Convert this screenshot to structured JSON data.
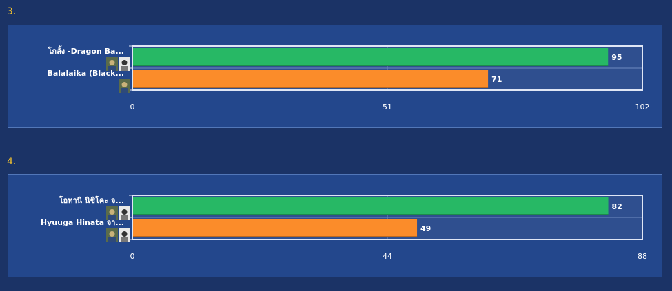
{
  "colors": {
    "series_a": "#27b865",
    "series_b": "#fb8c2a",
    "plot_bg": "#2f4f8f",
    "frame": "#dfe6f5"
  },
  "charts": [
    {
      "number": "3.",
      "chart_data": {
        "type": "bar",
        "orientation": "horizontal",
        "categories": [
          "โกลั้ง -Dragon Ba...",
          "Balalaika (Black..."
        ],
        "values": [
          95,
          71
        ],
        "bar_colors": [
          "#27b865",
          "#fb8c2a"
        ],
        "xlim": [
          0,
          102
        ],
        "xticks": [
          "0",
          "51",
          "102"
        ],
        "thumbnails": [
          2,
          1
        ],
        "grid": true
      }
    },
    {
      "number": "4.",
      "chart_data": {
        "type": "bar",
        "orientation": "horizontal",
        "categories": [
          "โอทานิ นิชิโคะ จ...",
          "Hyuuga Hinata จา..."
        ],
        "values": [
          82,
          49
        ],
        "bar_colors": [
          "#27b865",
          "#fb8c2a"
        ],
        "xlim": [
          0,
          88
        ],
        "xticks": [
          "0",
          "44",
          "88"
        ],
        "thumbnails": [
          2,
          2
        ],
        "grid": true
      }
    }
  ]
}
